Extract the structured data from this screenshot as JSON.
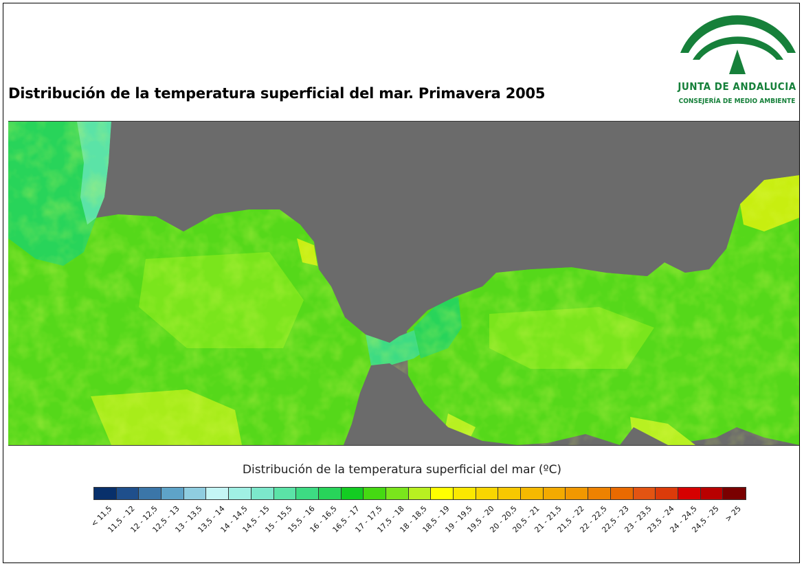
{
  "title": "Distribución de la temperatura superficial del mar. Primavera 2005",
  "logo": {
    "name": "JUNTA DE ANDALUCIA",
    "subtitle": "CONSEJERÍA DE MEDIO AMBIENTE",
    "color": "#16803a"
  },
  "map": {
    "land_color": "#6b6b6b",
    "dominant_sea_color": "#55d81a",
    "warm_patches_color": "#c8ee10",
    "cool_coastal_color": "#4fe6a6"
  },
  "legend": {
    "title": "Distribución de la temperatura superficial del mar",
    "unit": "(ºC)",
    "classes": [
      {
        "label": "< 11,5",
        "color": "#08306b"
      },
      {
        "label": "11,5 - 12",
        "color": "#1f4f8c"
      },
      {
        "label": "12 - 12,5",
        "color": "#3b76a8"
      },
      {
        "label": "12,5 - 13",
        "color": "#5ea3c8"
      },
      {
        "label": "13 - 13,5",
        "color": "#8fcde0"
      },
      {
        "label": "13,5 - 14",
        "color": "#c4f5f5"
      },
      {
        "label": "14 - 14,5",
        "color": "#a0f0e4"
      },
      {
        "label": "14,5 - 15",
        "color": "#7ce8cb"
      },
      {
        "label": "15 - 15,5",
        "color": "#5be3a7"
      },
      {
        "label": "15,5 - 16",
        "color": "#3ddb83"
      },
      {
        "label": "16 - 16,5",
        "color": "#28d45a"
      },
      {
        "label": "16,5 - 17",
        "color": "#13cc22"
      },
      {
        "label": "17 - 17,5",
        "color": "#45d912"
      },
      {
        "label": "17,5 - 18",
        "color": "#7ae51c"
      },
      {
        "label": "18 - 18,5",
        "color": "#b8f021"
      },
      {
        "label": "18,5 - 19",
        "color": "#ffff00"
      },
      {
        "label": "19 - 19,5",
        "color": "#fbe800"
      },
      {
        "label": "19,5 - 20",
        "color": "#f8d600"
      },
      {
        "label": "20 - 20,5",
        "color": "#f7c800"
      },
      {
        "label": "20,5 - 21",
        "color": "#f5b900"
      },
      {
        "label": "21 - 21,5",
        "color": "#f3aa00"
      },
      {
        "label": "21,5 - 22",
        "color": "#f19800"
      },
      {
        "label": "22 - 22,5",
        "color": "#ee8200"
      },
      {
        "label": "22,5 - 23",
        "color": "#e96a00"
      },
      {
        "label": "23 - 23,5",
        "color": "#e35412"
      },
      {
        "label": "23,5 - 24",
        "color": "#dc3b0a"
      },
      {
        "label": "24 - 24,5",
        "color": "#d60000"
      },
      {
        "label": "24,5 - 25",
        "color": "#b80000"
      },
      {
        "label": "> 25",
        "color": "#7a0000"
      }
    ]
  }
}
